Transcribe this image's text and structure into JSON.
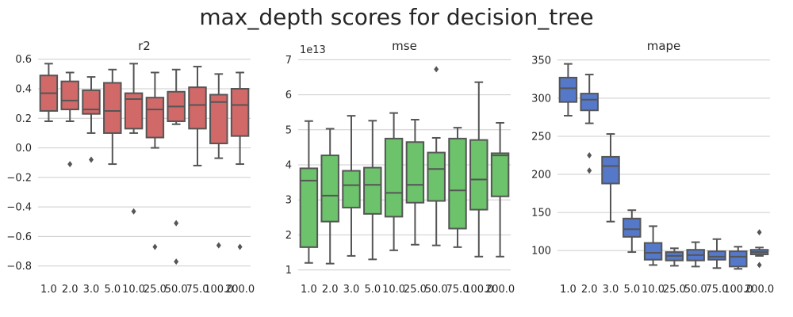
{
  "title": "max_depth scores for decision_tree",
  "colors": {
    "r2": "#d16969",
    "mse": "#6cc36c",
    "mape": "#5578c9",
    "line": "#555555",
    "grid": "#cccccc"
  },
  "chart_data": [
    {
      "type": "box",
      "title": "r2",
      "categories": [
        "1.0",
        "2.0",
        "3.0",
        "5.0",
        "10.0",
        "25.0",
        "50.0",
        "75.0",
        "100.0",
        "200.0"
      ],
      "ylim": [
        -0.85,
        0.62
      ],
      "yticks": [
        0.6,
        0.4,
        0.2,
        0.0,
        -0.2,
        -0.4,
        -0.6,
        -0.8
      ],
      "ytick_labels": [
        "0.6",
        "0.4",
        "0.2",
        "0.0",
        "−0.2",
        "−0.4",
        "−0.6",
        "−0.8"
      ],
      "offset_text": "",
      "boxes": [
        {
          "q1": 0.25,
          "median": 0.37,
          "q3": 0.49,
          "whislo": 0.18,
          "whishi": 0.57,
          "fliers": []
        },
        {
          "q1": 0.26,
          "median": 0.32,
          "q3": 0.45,
          "whislo": 0.18,
          "whishi": 0.51,
          "fliers": [
            -0.11
          ]
        },
        {
          "q1": 0.23,
          "median": 0.26,
          "q3": 0.39,
          "whislo": 0.1,
          "whishi": 0.48,
          "fliers": [
            -0.08
          ]
        },
        {
          "q1": 0.1,
          "median": 0.25,
          "q3": 0.44,
          "whislo": -0.11,
          "whishi": 0.53,
          "fliers": []
        },
        {
          "q1": 0.13,
          "median": 0.33,
          "q3": 0.37,
          "whislo": 0.1,
          "whishi": 0.57,
          "fliers": [
            -0.43
          ]
        },
        {
          "q1": 0.07,
          "median": 0.26,
          "q3": 0.34,
          "whislo": 0.0,
          "whishi": 0.51,
          "fliers": [
            -0.67
          ]
        },
        {
          "q1": 0.18,
          "median": 0.28,
          "q3": 0.38,
          "whislo": 0.16,
          "whishi": 0.53,
          "fliers": [
            -0.51,
            -0.77
          ]
        },
        {
          "q1": 0.13,
          "median": 0.29,
          "q3": 0.41,
          "whislo": -0.12,
          "whishi": 0.55,
          "fliers": []
        },
        {
          "q1": 0.03,
          "median": 0.31,
          "q3": 0.36,
          "whislo": -0.07,
          "whishi": 0.5,
          "fliers": [
            -0.66
          ]
        },
        {
          "q1": 0.08,
          "median": 0.29,
          "q3": 0.4,
          "whislo": -0.11,
          "whishi": 0.51,
          "fliers": [
            -0.67
          ]
        }
      ]
    },
    {
      "type": "box",
      "title": "mse",
      "categories": [
        "1.0",
        "2.0",
        "3.0",
        "5.0",
        "10.0",
        "25.0",
        "50.0",
        "75.0",
        "100.0",
        "200.0"
      ],
      "ylim": [
        0.9,
        7.1
      ],
      "yticks": [
        7,
        6,
        5,
        4,
        3,
        2,
        1
      ],
      "ytick_labels": [
        "7",
        "6",
        "5",
        "4",
        "3",
        "2",
        "1"
      ],
      "offset_text": "1e13",
      "boxes": [
        {
          "q1": 1.65,
          "median": 3.55,
          "q3": 3.9,
          "whislo": 1.2,
          "whishi": 5.25,
          "fliers": []
        },
        {
          "q1": 2.38,
          "median": 3.12,
          "q3": 4.27,
          "whislo": 1.18,
          "whishi": 5.03,
          "fliers": []
        },
        {
          "q1": 2.78,
          "median": 3.42,
          "q3": 3.83,
          "whislo": 1.4,
          "whishi": 5.4,
          "fliers": []
        },
        {
          "q1": 2.6,
          "median": 3.43,
          "q3": 3.92,
          "whislo": 1.3,
          "whishi": 5.26,
          "fliers": []
        },
        {
          "q1": 2.52,
          "median": 3.2,
          "q3": 4.75,
          "whislo": 1.56,
          "whishi": 5.48,
          "fliers": []
        },
        {
          "q1": 2.92,
          "median": 3.43,
          "q3": 4.65,
          "whislo": 1.72,
          "whishi": 5.29,
          "fliers": []
        },
        {
          "q1": 2.97,
          "median": 3.88,
          "q3": 4.35,
          "whislo": 1.7,
          "whishi": 4.77,
          "fliers": [
            6.73
          ]
        },
        {
          "q1": 2.18,
          "median": 3.27,
          "q3": 4.75,
          "whislo": 1.65,
          "whishi": 5.06,
          "fliers": []
        },
        {
          "q1": 2.72,
          "median": 3.58,
          "q3": 4.71,
          "whislo": 1.38,
          "whishi": 6.36,
          "fliers": []
        },
        {
          "q1": 3.1,
          "median": 4.27,
          "q3": 4.33,
          "whislo": 1.38,
          "whishi": 5.2,
          "fliers": []
        }
      ]
    },
    {
      "type": "box",
      "title": "mape",
      "categories": [
        "1.0",
        "2.0",
        "3.0",
        "5.0",
        "10.0",
        "25.0",
        "50.0",
        "75.0",
        "100.0",
        "200.0"
      ],
      "ylim": [
        70,
        355
      ],
      "yticks": [
        350,
        300,
        250,
        200,
        150,
        100
      ],
      "ytick_labels": [
        "350",
        "300",
        "250",
        "200",
        "150",
        "100"
      ],
      "offset_text": "",
      "boxes": [
        {
          "q1": 295,
          "median": 313,
          "q3": 327,
          "whislo": 277,
          "whishi": 345,
          "fliers": []
        },
        {
          "q1": 284,
          "median": 298,
          "q3": 306,
          "whislo": 267,
          "whishi": 331,
          "fliers": [
            225,
            205
          ]
        },
        {
          "q1": 188,
          "median": 211,
          "q3": 223,
          "whislo": 138,
          "whishi": 253,
          "fliers": []
        },
        {
          "q1": 118,
          "median": 128,
          "q3": 142,
          "whislo": 98,
          "whishi": 153,
          "fliers": []
        },
        {
          "q1": 88,
          "median": 97,
          "q3": 110,
          "whislo": 81,
          "whishi": 132,
          "fliers": []
        },
        {
          "q1": 87,
          "median": 93,
          "q3": 98,
          "whislo": 80,
          "whishi": 103,
          "fliers": []
        },
        {
          "q1": 87,
          "median": 94,
          "q3": 101,
          "whislo": 79,
          "whishi": 111,
          "fliers": []
        },
        {
          "q1": 88,
          "median": 92,
          "q3": 99,
          "whislo": 77,
          "whishi": 115,
          "fliers": []
        },
        {
          "q1": 79,
          "median": 92,
          "q3": 99,
          "whislo": 76,
          "whishi": 105,
          "fliers": []
        },
        {
          "q1": 95,
          "median": 98,
          "q3": 101,
          "whislo": 93,
          "whishi": 104,
          "fliers": [
            124,
            81
          ]
        }
      ]
    }
  ]
}
